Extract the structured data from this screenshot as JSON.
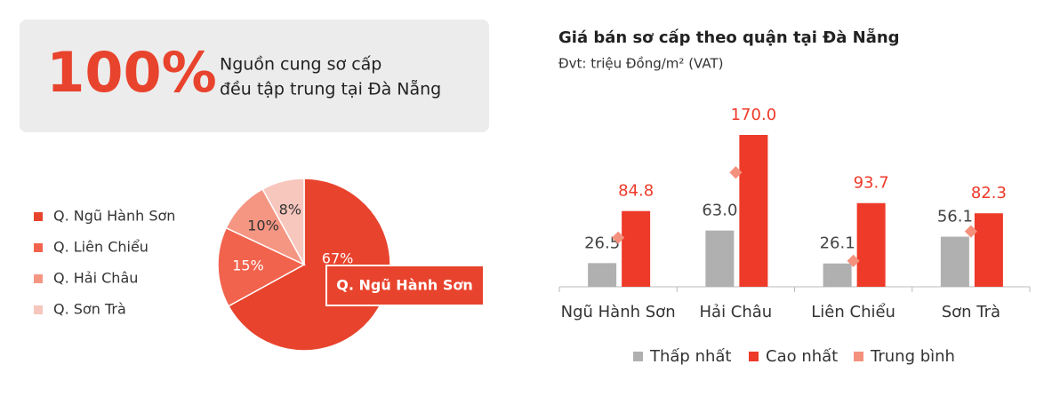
{
  "stat": {
    "value": "100%",
    "line1": "Nguồn cung sơ cấp",
    "line2": "đều tập trung tại Đà Nẵng"
  },
  "chart_data": [
    {
      "type": "pie",
      "categories": [
        "Q. Ngũ Hành Sơn",
        "Q. Liên Chiểu",
        "Q. Hải Châu",
        "Q. Sơn Trà"
      ],
      "values": [
        67,
        15,
        10,
        8
      ],
      "value_labels": [
        "67%",
        "15%",
        "10%",
        "8%"
      ],
      "colors": [
        "#e8432d",
        "#f2634d",
        "#f59683",
        "#f7c6bd"
      ]
    },
    {
      "type": "bar",
      "title": "Giá bán sơ cấp theo quận tại Đà Nẵng",
      "subtitle": "Đvt: triệu Đồng/m² (VAT)",
      "categories": [
        "Ngũ Hành Sơn",
        "Hải Châu",
        "Liên Chiểu",
        "Sơn Trà"
      ],
      "ylim": [
        0,
        170
      ],
      "series": [
        {
          "name": "Thấp nhất",
          "color": "#b0b0b0",
          "values": [
            26.5,
            63.0,
            26.1,
            56.1
          ],
          "value_labels": [
            "26.5",
            "63.0",
            "26.1",
            "56.1"
          ]
        },
        {
          "name": "Cao nhất",
          "color": "#ee3a29",
          "values": [
            84.8,
            170.0,
            93.7,
            82.3
          ],
          "value_labels": [
            "84.8",
            "170.0",
            "93.7",
            "82.3"
          ]
        },
        {
          "name": "Trung bình",
          "color": "#f4917d",
          "values": [
            55,
            128,
            29,
            62
          ]
        }
      ]
    }
  ]
}
